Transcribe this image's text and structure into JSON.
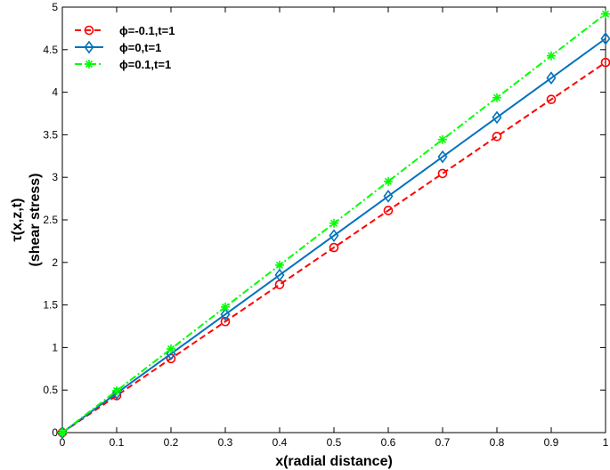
{
  "chart_data": {
    "type": "line",
    "xlabel": "x(radial distance)",
    "ylabel_lines": [
      "τ(x,z,t)",
      "(shear stress)"
    ],
    "xlim": [
      0,
      1
    ],
    "ylim": [
      0,
      5
    ],
    "xticks": [
      0,
      0.1,
      0.2,
      0.3,
      0.4,
      0.5,
      0.6,
      0.7,
      0.8,
      0.9,
      1
    ],
    "yticks": [
      0,
      0.5,
      1,
      1.5,
      2,
      2.5,
      3,
      3.5,
      4,
      4.5,
      5
    ],
    "xtick_labels": [
      "0",
      "0.1",
      "0.2",
      "0.3",
      "0.4",
      "0.5",
      "0.6",
      "0.7",
      "0.8",
      "0.9",
      "1"
    ],
    "ytick_labels": [
      "0",
      "0.5",
      "1",
      "1.5",
      "2",
      "2.5",
      "3",
      "3.5",
      "4",
      "4.5",
      "5"
    ],
    "grid": false,
    "legend_position": "top-left",
    "x": [
      0,
      0.1,
      0.2,
      0.3,
      0.4,
      0.5,
      0.6,
      0.7,
      0.8,
      0.9,
      1
    ],
    "series": [
      {
        "name": "ϕ=-0.1,t=1",
        "color": "#ff0000",
        "line_style": "dashed",
        "marker": "circle",
        "values": [
          0,
          0.435,
          0.87,
          1.305,
          1.74,
          2.175,
          2.61,
          3.045,
          3.48,
          3.915,
          4.35
        ]
      },
      {
        "name": "ϕ=0,t=1",
        "color": "#0072bd",
        "line_style": "solid",
        "marker": "diamond",
        "values": [
          0,
          0.463,
          0.926,
          1.389,
          1.852,
          2.315,
          2.778,
          3.241,
          3.704,
          4.167,
          4.63
        ]
      },
      {
        "name": "ϕ=0.1,t=1",
        "color": "#00ff00",
        "line_style": "dashdot",
        "marker": "asterisk",
        "values": [
          0,
          0.492,
          0.984,
          1.476,
          1.968,
          2.46,
          2.952,
          3.444,
          3.936,
          4.428,
          4.92
        ]
      }
    ]
  }
}
